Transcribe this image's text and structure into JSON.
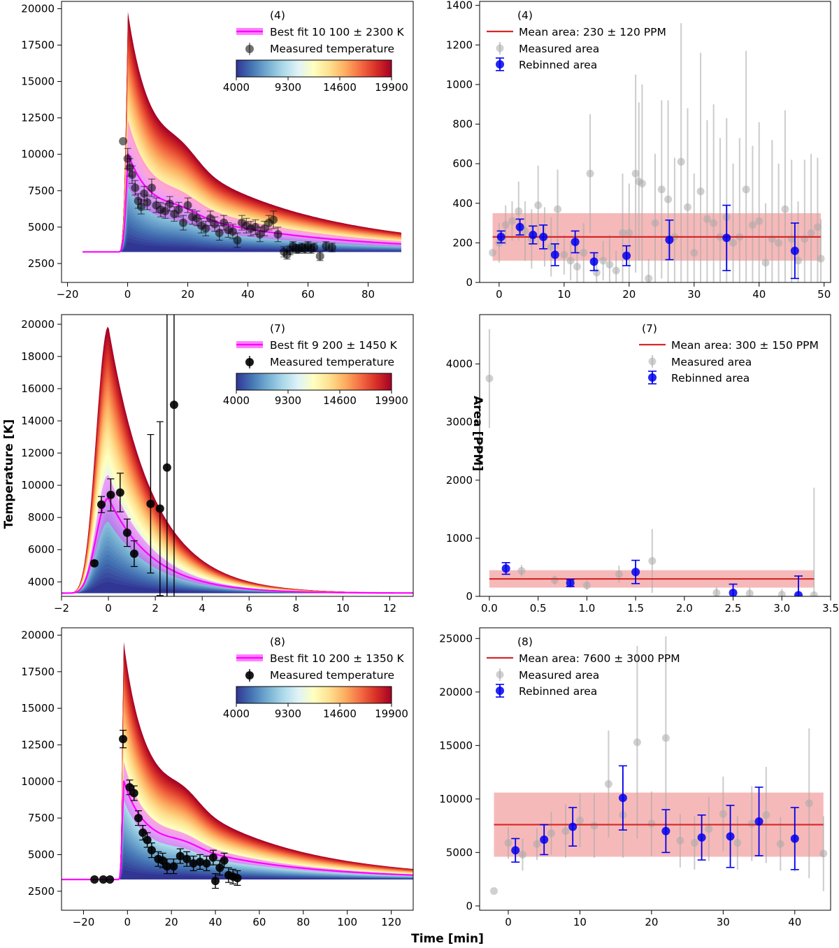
{
  "figure": {
    "ylabel_left": "Temperature [K]",
    "ylabel_right": "Area [PPM]",
    "xlabel": "Time [min]"
  },
  "colorbar": {
    "ticks": [
      "4000",
      "9300",
      "14600",
      "19900"
    ],
    "stops": [
      "#313695",
      "#4575b4",
      "#74add1",
      "#abd9e9",
      "#e0f3f8",
      "#ffffbf",
      "#fee090",
      "#fdae61",
      "#f46d43",
      "#d73027",
      "#a50026"
    ]
  },
  "colors": {
    "fit": "#ff00ff",
    "measured_temp": "#000000",
    "mean_line": "#d62728",
    "mean_band": "#f4a8a8",
    "measured_area": "#aaaaaa",
    "rebinned": "#0000ee"
  },
  "chart_data": [
    {
      "type": "line",
      "panel": "temperature",
      "event": "(4)",
      "xlim": [
        -22,
        95
      ],
      "ylim": [
        1200,
        20500
      ],
      "xticks": [
        -20,
        0,
        20,
        40,
        60,
        80
      ],
      "yticks": [
        2500,
        5000,
        7500,
        10000,
        12500,
        15000,
        17500,
        20000
      ],
      "legend_fit": "Best fit 10 100 ± 2300 K",
      "legend_measured": "Measured temperature",
      "model": {
        "t_start": -15,
        "t_rise": -3,
        "t_peak": 0,
        "t_end": 91,
        "baseline": 3300,
        "tau": 6.0,
        "decay_frac": 0.42,
        "tail": 0.25,
        "bump_t": 18,
        "bump_w": 8,
        "bump_a": 0.06,
        "peak_min": 4000,
        "peak_max": 19900,
        "best_peak": 10100,
        "fit_sigma": 2300
      },
      "measured": [
        [
          -1.5,
          10900,
          0
        ],
        [
          0,
          9700,
          700
        ],
        [
          0.7,
          9100,
          600
        ],
        [
          1.5,
          8600,
          600
        ],
        [
          2.5,
          7700,
          500
        ],
        [
          3.5,
          6800,
          500
        ],
        [
          4.5,
          6400,
          500
        ],
        [
          5.5,
          7300,
          500
        ],
        [
          6.5,
          6700,
          500
        ],
        [
          8,
          7700,
          600
        ],
        [
          9.5,
          6500,
          500
        ],
        [
          11,
          6200,
          500
        ],
        [
          12.5,
          6100,
          500
        ],
        [
          14,
          6600,
          500
        ],
        [
          15.5,
          5900,
          500
        ],
        [
          17,
          6200,
          500
        ],
        [
          18.5,
          5300,
          500
        ],
        [
          20,
          6500,
          500
        ],
        [
          21.5,
          5700,
          500
        ],
        [
          23,
          5600,
          500
        ],
        [
          24.5,
          5100,
          500
        ],
        [
          26,
          4900,
          500
        ],
        [
          27.5,
          5600,
          500
        ],
        [
          29,
          5200,
          500
        ],
        [
          30.5,
          4600,
          500
        ],
        [
          32,
          5300,
          500
        ],
        [
          33.5,
          4800,
          500
        ],
        [
          35,
          4700,
          500
        ],
        [
          36.5,
          4100,
          500
        ],
        [
          38,
          5300,
          500
        ],
        [
          39.5,
          5100,
          500
        ],
        [
          41,
          4900,
          500
        ],
        [
          42.5,
          5000,
          500
        ],
        [
          44,
          4500,
          500
        ],
        [
          45.5,
          4900,
          500
        ],
        [
          47,
          5300,
          500
        ],
        [
          48.5,
          5500,
          600
        ],
        [
          50,
          4500,
          500
        ],
        [
          52,
          3300,
          350
        ],
        [
          53,
          3100,
          300
        ],
        [
          54,
          3400,
          300
        ],
        [
          55,
          3700,
          300
        ],
        [
          56,
          3500,
          300
        ],
        [
          57,
          3500,
          300
        ],
        [
          58,
          3600,
          300
        ],
        [
          59,
          3500,
          300
        ],
        [
          60,
          3700,
          300
        ],
        [
          61,
          3500,
          300
        ],
        [
          62,
          3600,
          300
        ],
        [
          64,
          3000,
          300
        ],
        [
          66,
          3700,
          300
        ],
        [
          68,
          3600,
          300
        ]
      ]
    },
    {
      "type": "scatter",
      "panel": "area",
      "event": "(4)",
      "xlim": [
        -3,
        51
      ],
      "ylim": [
        0,
        1420
      ],
      "xticks": [
        0,
        10,
        20,
        30,
        40,
        50
      ],
      "yticks": [
        0,
        200,
        400,
        600,
        800,
        1000,
        1200,
        1400
      ],
      "legend_mean": "Mean area: 230 ± 120 PPM",
      "legend_measured": "Measured area",
      "legend_rebinned": "Rebinned area",
      "mean": 230,
      "mean_err": 120,
      "x_from": -1,
      "x_to": 49.5,
      "measured": [
        [
          -1,
          150,
          0
        ],
        [
          0,
          200,
          100
        ],
        [
          1,
          290,
          100
        ],
        [
          2,
          310,
          100
        ],
        [
          3,
          360,
          150
        ],
        [
          4,
          260,
          150
        ],
        [
          5,
          220,
          150
        ],
        [
          6,
          390,
          200
        ],
        [
          7,
          230,
          150
        ],
        [
          8,
          180,
          150
        ],
        [
          9,
          370,
          200
        ],
        [
          10,
          140,
          100
        ],
        [
          11,
          110,
          100
        ],
        [
          12,
          80,
          120
        ],
        [
          13,
          150,
          150
        ],
        [
          14,
          550,
          300
        ],
        [
          15,
          50,
          100
        ],
        [
          16,
          110,
          100
        ],
        [
          17,
          90,
          150
        ],
        [
          18,
          60,
          100
        ],
        [
          19,
          250,
          300
        ],
        [
          20,
          250,
          250
        ],
        [
          21,
          550,
          500
        ],
        [
          21.5,
          510,
          400
        ],
        [
          22,
          500,
          500
        ],
        [
          23,
          20,
          100
        ],
        [
          24,
          300,
          350
        ],
        [
          25,
          470,
          450
        ],
        [
          26,
          420,
          500
        ],
        [
          27,
          230,
          400
        ],
        [
          28,
          610,
          700
        ],
        [
          29,
          380,
          500
        ],
        [
          30,
          150,
          400
        ],
        [
          31,
          460,
          700
        ],
        [
          32,
          320,
          500
        ],
        [
          33,
          300,
          600
        ],
        [
          34,
          230,
          500
        ],
        [
          35,
          330,
          500
        ],
        [
          36,
          200,
          400
        ],
        [
          37,
          230,
          500
        ],
        [
          38,
          470,
          700
        ],
        [
          39,
          290,
          400
        ],
        [
          40,
          310,
          500
        ],
        [
          41,
          100,
          300
        ],
        [
          42,
          220,
          500
        ],
        [
          43,
          200,
          400
        ],
        [
          44,
          370,
          500
        ],
        [
          45,
          220,
          400
        ],
        [
          46,
          110,
          300
        ],
        [
          47,
          220,
          400
        ],
        [
          48,
          250,
          400
        ],
        [
          49,
          280,
          350
        ],
        [
          49.5,
          120,
          200
        ]
      ],
      "rebinned": [
        [
          0.3,
          230,
          30
        ],
        [
          3.2,
          280,
          40
        ],
        [
          5.2,
          240,
          45
        ],
        [
          6.8,
          230,
          60
        ],
        [
          8.6,
          140,
          55
        ],
        [
          11.7,
          205,
          55
        ],
        [
          14.6,
          105,
          45
        ],
        [
          19.6,
          135,
          50
        ],
        [
          26.2,
          215,
          100
        ],
        [
          35,
          225,
          165
        ],
        [
          45.5,
          160,
          140
        ]
      ]
    },
    {
      "type": "line",
      "panel": "temperature",
      "event": "(7)",
      "xlim": [
        -2,
        13
      ],
      "ylim": [
        3100,
        20600
      ],
      "xticks": [
        -2,
        0,
        2,
        4,
        6,
        8,
        10,
        12
      ],
      "yticks": [
        4000,
        6000,
        8000,
        10000,
        12000,
        14000,
        16000,
        18000,
        20000
      ],
      "legend_fit": "Best fit 9 200 ± 1450 K",
      "legend_measured": "Measured temperature",
      "model": {
        "t_start": -2,
        "t_rise": -1.2,
        "t_peak": 0,
        "t_end": 13,
        "baseline": 3300,
        "tau": 2.0,
        "decay_frac": 0.0,
        "tail": 0.0,
        "bump_t": 0,
        "bump_w": 1,
        "bump_a": 0,
        "peak_min": 4000,
        "peak_max": 19900,
        "best_peak": 9200,
        "fit_sigma": 1450,
        "smooth_rise": true
      },
      "measured": [
        [
          -0.6,
          5150,
          150
        ],
        [
          -0.3,
          8800,
          500
        ],
        [
          0.1,
          9400,
          1000
        ],
        [
          0.5,
          9550,
          1200
        ],
        [
          0.8,
          7050,
          850
        ],
        [
          1.1,
          5750,
          800
        ],
        [
          1.8,
          8850,
          4300
        ],
        [
          2.2,
          8550,
          5400
        ],
        [
          2.5,
          11100,
          22000
        ],
        [
          2.8,
          15000,
          22000
        ]
      ]
    },
    {
      "type": "scatter",
      "panel": "area",
      "event": "(7)",
      "xlim": [
        -0.1,
        3.5
      ],
      "ylim": [
        0,
        4850
      ],
      "xticks": [
        0.0,
        0.5,
        1.0,
        1.5,
        2.0,
        2.5,
        3.0,
        3.5
      ],
      "xtick_labels": [
        "0.0",
        "0.5",
        "1.0",
        "1.5",
        "2.0",
        "2.5",
        "3.0",
        "3.5"
      ],
      "yticks": [
        0,
        1000,
        2000,
        3000,
        4000
      ],
      "legend_mean": "Mean area: 300 ± 150 PPM",
      "legend_measured": "Measured area",
      "legend_rebinned": "Rebinned area",
      "mean": 300,
      "mean_err": 150,
      "x_from": 0,
      "x_to": 3.33,
      "measured": [
        [
          0,
          3750,
          850
        ],
        [
          0.33,
          440,
          100
        ],
        [
          0.67,
          280,
          80
        ],
        [
          1.0,
          190,
          80
        ],
        [
          1.33,
          380,
          150
        ],
        [
          1.67,
          610,
          550
        ],
        [
          2.33,
          60,
          100
        ],
        [
          2.67,
          50,
          100
        ],
        [
          3.0,
          30,
          100
        ],
        [
          3.33,
          20,
          1850
        ]
      ],
      "rebinned": [
        [
          0.17,
          480,
          100
        ],
        [
          0.83,
          230,
          60
        ],
        [
          1.5,
          420,
          200
        ],
        [
          2.5,
          60,
          150
        ],
        [
          3.17,
          20,
          330
        ]
      ]
    },
    {
      "type": "line",
      "panel": "temperature",
      "event": "(8)",
      "xlim": [
        -30,
        130
      ],
      "ylim": [
        1200,
        20500
      ],
      "xticks": [
        -20,
        0,
        20,
        40,
        60,
        80,
        100,
        120
      ],
      "yticks": [
        2500,
        5000,
        7500,
        10000,
        12500,
        15000,
        17500,
        20000
      ],
      "legend_fit": "Best fit 10 200 ± 1350 K",
      "legend_measured": "Measured temperature",
      "model": {
        "t_start": -30,
        "t_rise": -4,
        "t_peak": -2,
        "t_end": 130,
        "baseline": 3300,
        "tau": 7.0,
        "decay_frac": 0.4,
        "tail": 0.28,
        "bump_t": 28,
        "bump_w": 10,
        "bump_a": 0.05,
        "peak_min": 4000,
        "peak_max": 19900,
        "best_peak": 10200,
        "fit_sigma": 1350
      },
      "measured": [
        [
          -15,
          3300,
          0
        ],
        [
          -11,
          3300,
          0
        ],
        [
          -8,
          3300,
          0
        ],
        [
          -2,
          12900,
          600
        ],
        [
          1,
          9600,
          500
        ],
        [
          3,
          9200,
          500
        ],
        [
          5,
          7500,
          500
        ],
        [
          7,
          6500,
          500
        ],
        [
          9,
          6000,
          500
        ],
        [
          11,
          5300,
          500
        ],
        [
          14,
          4700,
          500
        ],
        [
          16,
          4600,
          500
        ],
        [
          18,
          4200,
          500
        ],
        [
          21,
          4200,
          500
        ],
        [
          24,
          4900,
          500
        ],
        [
          27,
          4700,
          500
        ],
        [
          30,
          4400,
          500
        ],
        [
          33,
          4500,
          500
        ],
        [
          36,
          4400,
          500
        ],
        [
          39,
          4800,
          500
        ],
        [
          40,
          3200,
          500
        ],
        [
          42,
          4100,
          500
        ],
        [
          44,
          4600,
          500
        ],
        [
          46,
          3600,
          500
        ],
        [
          48,
          3500,
          500
        ],
        [
          50,
          3400,
          500
        ]
      ]
    },
    {
      "type": "scatter",
      "panel": "area",
      "event": "(8)",
      "xlim": [
        -4,
        45
      ],
      "ylim": [
        -400,
        26000
      ],
      "xticks": [
        0,
        10,
        20,
        30,
        40
      ],
      "yticks": [
        0,
        5000,
        10000,
        15000,
        20000,
        25000
      ],
      "legend_mean": "Mean area: 7600 ± 3000 PPM",
      "legend_measured": "Measured area",
      "legend_rebinned": "Rebinned area",
      "mean": 7600,
      "mean_err": 3000,
      "x_from": -2,
      "x_to": 44,
      "measured": [
        [
          -2,
          1400,
          0
        ],
        [
          0,
          5900,
          1500
        ],
        [
          2,
          4800,
          1500
        ],
        [
          4,
          5800,
          1500
        ],
        [
          6,
          6800,
          2000
        ],
        [
          8,
          7000,
          2500
        ],
        [
          10,
          8000,
          2500
        ],
        [
          12,
          7500,
          3000
        ],
        [
          14,
          11400,
          5000
        ],
        [
          16,
          8500,
          4000
        ],
        [
          18,
          15300,
          9000
        ],
        [
          20,
          7700,
          3000
        ],
        [
          22,
          15700,
          9500
        ],
        [
          24,
          6100,
          2500
        ],
        [
          26,
          5900,
          2500
        ],
        [
          28,
          7200,
          3000
        ],
        [
          30,
          8600,
          3500
        ],
        [
          32,
          5900,
          2500
        ],
        [
          34,
          7700,
          3500
        ],
        [
          36,
          8500,
          4500
        ],
        [
          38,
          5800,
          2500
        ],
        [
          40,
          6200,
          3000
        ],
        [
          42,
          9600,
          7000
        ],
        [
          44,
          4900,
          3500
        ]
      ],
      "rebinned": [
        [
          1,
          5200,
          1100
        ],
        [
          5,
          6200,
          1400
        ],
        [
          9,
          7400,
          1800
        ],
        [
          16,
          10100,
          3000
        ],
        [
          22,
          7000,
          2000
        ],
        [
          27,
          6400,
          2100
        ],
        [
          31,
          6500,
          2900
        ],
        [
          35,
          7900,
          3200
        ],
        [
          40,
          6300,
          2900
        ]
      ]
    }
  ]
}
